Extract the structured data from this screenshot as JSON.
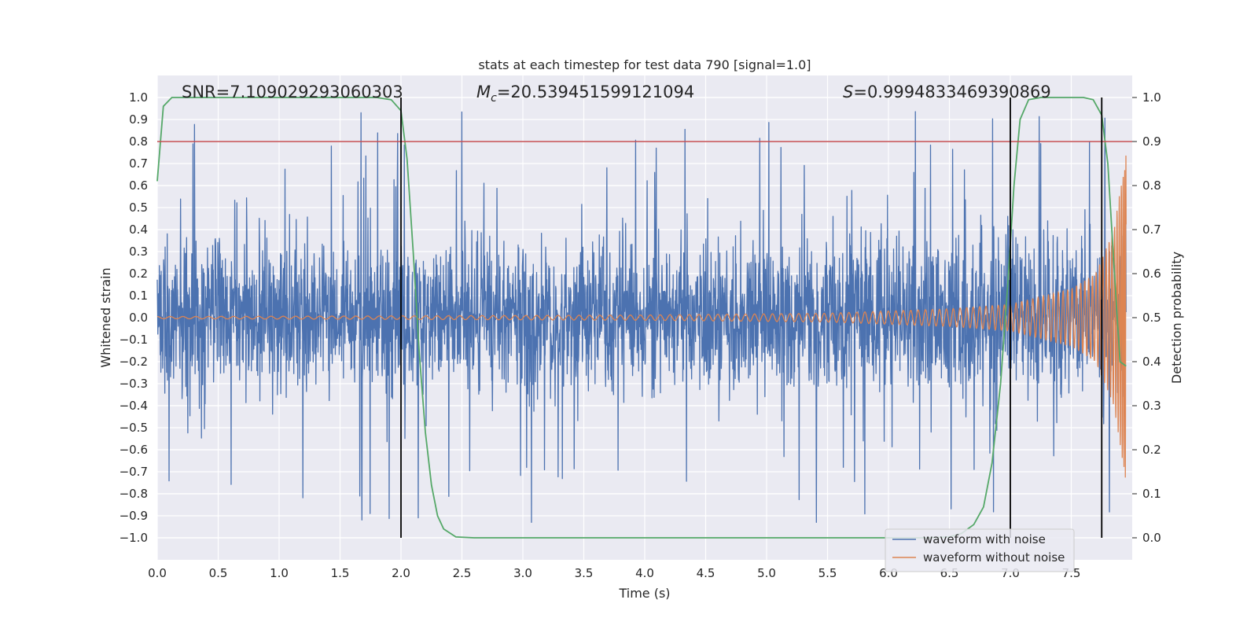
{
  "chart_data": {
    "type": "line",
    "title": "stats at each timestep for test data 790 [signal=1.0]",
    "xlabel": "Time (s)",
    "ylabel": "Whitened strain",
    "ylabel_right": "Detection probability",
    "xlim": [
      0.0,
      8.0
    ],
    "ylim": [
      -1.1,
      1.1
    ],
    "ylim_right": [
      -0.05,
      1.05
    ],
    "x_ticks": [
      0.0,
      0.5,
      1.0,
      1.5,
      2.0,
      2.5,
      3.0,
      3.5,
      4.0,
      4.5,
      5.0,
      5.5,
      6.0,
      6.5,
      7.0,
      7.5
    ],
    "x_tick_labels": [
      "0.0",
      "0.5",
      "1.0",
      "1.5",
      "2.0",
      "2.5",
      "3.0",
      "3.5",
      "4.0",
      "4.5",
      "5.0",
      "5.5",
      "6.0",
      "6.5",
      "7.0",
      "7.5"
    ],
    "y_ticks": [
      1.0,
      0.9,
      0.8,
      0.7,
      0.6,
      0.5,
      0.4,
      0.3,
      0.2,
      0.1,
      0.0,
      -0.1,
      -0.2,
      -0.3,
      -0.4,
      -0.5,
      -0.6,
      -0.7,
      -0.8,
      -0.9,
      -1.0
    ],
    "y_tick_labels": [
      "1.0",
      "0.9",
      "0.8",
      "0.7",
      "0.6",
      "0.5",
      "0.4",
      "0.3",
      "0.2",
      "0.1",
      "0.0",
      "−0.1",
      "−0.2",
      "−0.3",
      "−0.4",
      "−0.5",
      "−0.6",
      "−0.7",
      "−0.8",
      "−0.9",
      "−1.0"
    ],
    "y_ticks_right": [
      1.0,
      0.9,
      0.8,
      0.7,
      0.6,
      0.5,
      0.4,
      0.3,
      0.2,
      0.1,
      0.0
    ],
    "y_tick_labels_right": [
      "1.0",
      "0.9",
      "0.8",
      "0.7",
      "0.6",
      "0.5",
      "0.4",
      "0.3",
      "0.2",
      "0.1",
      "0.0"
    ],
    "grid": true,
    "legend_position": "lower-right",
    "annotations": {
      "snr": "SNR=7.109029293060303",
      "mc_symbol": "M",
      "mc_sub": "c",
      "mc_value": "=20.539451599121094",
      "s_symbol": "S",
      "s_value": "=0.9994833469390869"
    },
    "series": [
      {
        "name": "waveform with noise",
        "color": "#4c72b0",
        "style": "dense noise, typical amplitude about 0.2, peaks up to about 0.97 and down to about -0.93"
      },
      {
        "name": "waveform without noise",
        "color": "#dd8452",
        "style": "chirp growing from about 0.005 near t=0 to about 0.75 at t=7.95",
        "points": [
          [
            0.0,
            0.005
          ],
          [
            2.0,
            0.008
          ],
          [
            4.0,
            0.012
          ],
          [
            5.5,
            0.02
          ],
          [
            6.5,
            0.04
          ],
          [
            7.0,
            0.06
          ],
          [
            7.5,
            0.13
          ],
          [
            7.7,
            0.2
          ],
          [
            7.85,
            0.4
          ],
          [
            7.95,
            0.75
          ]
        ]
      },
      {
        "name": "detection probability",
        "axis": "right",
        "color": "#55a868",
        "points": [
          [
            0.0,
            0.81
          ],
          [
            0.05,
            0.98
          ],
          [
            0.12,
            1.0
          ],
          [
            1.8,
            1.0
          ],
          [
            1.92,
            0.995
          ],
          [
            2.0,
            0.97
          ],
          [
            2.05,
            0.86
          ],
          [
            2.1,
            0.65
          ],
          [
            2.15,
            0.42
          ],
          [
            2.2,
            0.24
          ],
          [
            2.25,
            0.12
          ],
          [
            2.3,
            0.05
          ],
          [
            2.35,
            0.02
          ],
          [
            2.45,
            0.002
          ],
          [
            2.6,
            0.0
          ],
          [
            6.3,
            0.0
          ],
          [
            6.5,
            0.002
          ],
          [
            6.6,
            0.01
          ],
          [
            6.7,
            0.03
          ],
          [
            6.78,
            0.07
          ],
          [
            6.85,
            0.17
          ],
          [
            6.92,
            0.35
          ],
          [
            6.98,
            0.58
          ],
          [
            7.03,
            0.8
          ],
          [
            7.08,
            0.95
          ],
          [
            7.15,
            0.995
          ],
          [
            7.25,
            1.0
          ],
          [
            7.6,
            1.0
          ],
          [
            7.68,
            0.995
          ],
          [
            7.75,
            0.96
          ],
          [
            7.8,
            0.85
          ],
          [
            7.85,
            0.62
          ],
          [
            7.9,
            0.4
          ],
          [
            7.95,
            0.39
          ]
        ]
      },
      {
        "name": "threshold",
        "axis": "right",
        "color": "#c44e52",
        "value": 0.9
      }
    ],
    "vertical_lines": [
      2.0,
      7.0,
      7.75
    ],
    "colors": {
      "plot_bg": "#eaeaf2",
      "grid": "#ffffff",
      "text": "#262626",
      "vline": "#000000",
      "legend_bg": "#eaeaf2",
      "legend_border": "#cccccc"
    }
  }
}
